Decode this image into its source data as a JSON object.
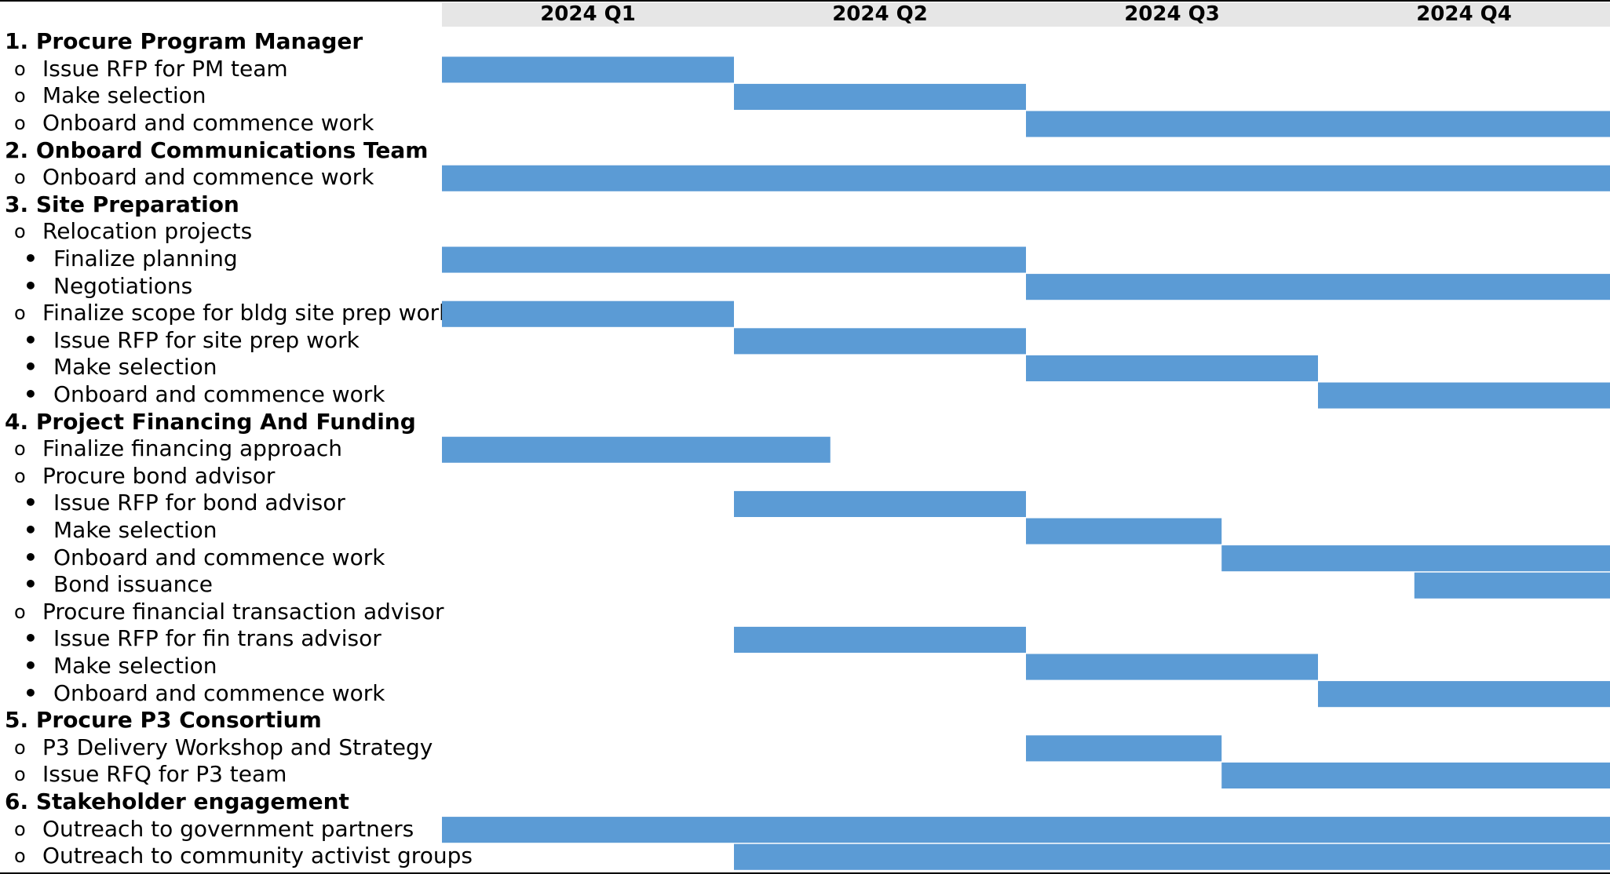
{
  "chart_data": {
    "type": "bar",
    "title": "",
    "xlabel": "",
    "ylabel": "",
    "quarters": [
      "2024 Q1",
      "2024 Q2",
      "2024 Q3",
      "2024 Q4"
    ],
    "x_range_quarters": [
      0,
      4
    ],
    "grid": false,
    "legend": "none",
    "colors": {
      "bar": "#5b9bd5",
      "header_band": "#e6e6e6"
    },
    "rows": [
      {
        "level": "section",
        "marker": "",
        "label": "1. Procure Program Manager",
        "start": null,
        "end": null
      },
      {
        "level": "sub",
        "marker": "o",
        "label": "Issue RFP for PM team",
        "start": 0,
        "end": 1
      },
      {
        "level": "sub",
        "marker": "o",
        "label": "Make selection",
        "start": 1,
        "end": 2
      },
      {
        "level": "sub",
        "marker": "o",
        "label": "Onboard and commence work",
        "start": 2,
        "end": 4
      },
      {
        "level": "section",
        "marker": "",
        "label": "2. Onboard Communications Team",
        "start": null,
        "end": null
      },
      {
        "level": "sub",
        "marker": "o",
        "label": "Onboard and commence work",
        "start": 0,
        "end": 4
      },
      {
        "level": "section",
        "marker": "",
        "label": "3. Site Preparation",
        "start": null,
        "end": null
      },
      {
        "level": "sub",
        "marker": "o",
        "label": "Relocation projects",
        "start": null,
        "end": null
      },
      {
        "level": "subsub",
        "marker": "•",
        "label": "Finalize planning",
        "start": 0,
        "end": 2
      },
      {
        "level": "subsub",
        "marker": "•",
        "label": "Negotiations",
        "start": 2,
        "end": 4
      },
      {
        "level": "sub",
        "marker": "o",
        "label": "Finalize scope for bldg site prep work",
        "start": 0,
        "end": 1
      },
      {
        "level": "subsub",
        "marker": "•",
        "label": "Issue RFP for site prep work",
        "start": 1,
        "end": 2
      },
      {
        "level": "subsub",
        "marker": "•",
        "label": "Make selection",
        "start": 2,
        "end": 3
      },
      {
        "level": "subsub",
        "marker": "•",
        "label": "Onboard and commence work",
        "start": 3,
        "end": 4
      },
      {
        "level": "section",
        "marker": "",
        "label": "4. Project Financing And Funding",
        "start": null,
        "end": null
      },
      {
        "level": "sub",
        "marker": "o",
        "label": "Finalize financing approach",
        "start": 0,
        "end": 1.33
      },
      {
        "level": "sub",
        "marker": "o",
        "label": "Procure bond advisor",
        "start": null,
        "end": null
      },
      {
        "level": "subsub",
        "marker": "•",
        "label": "Issue RFP for bond advisor",
        "start": 1,
        "end": 2
      },
      {
        "level": "subsub",
        "marker": "•",
        "label": "Make selection",
        "start": 2,
        "end": 2.67
      },
      {
        "level": "subsub",
        "marker": "•",
        "label": "Onboard and commence work",
        "start": 2.67,
        "end": 4
      },
      {
        "level": "subsub",
        "marker": "•",
        "label": "Bond issuance",
        "start": 3.33,
        "end": 4
      },
      {
        "level": "sub",
        "marker": "o",
        "label": "Procure financial transaction advisor",
        "start": null,
        "end": null
      },
      {
        "level": "subsub",
        "marker": "•",
        "label": "Issue RFP for fin trans advisor",
        "start": 1,
        "end": 2
      },
      {
        "level": "subsub",
        "marker": "•",
        "label": "Make selection",
        "start": 2,
        "end": 3
      },
      {
        "level": "subsub",
        "marker": "•",
        "label": "Onboard and commence work",
        "start": 3,
        "end": 4
      },
      {
        "level": "section",
        "marker": "",
        "label": "5. Procure P3 Consortium",
        "start": null,
        "end": null
      },
      {
        "level": "sub",
        "marker": "o",
        "label": "P3 Delivery Workshop and Strategy",
        "start": 2,
        "end": 2.67
      },
      {
        "level": "sub",
        "marker": "o",
        "label": "Issue RFQ for P3 team",
        "start": 2.67,
        "end": 4
      },
      {
        "level": "section",
        "marker": "",
        "label": "6. Stakeholder engagement",
        "start": null,
        "end": null
      },
      {
        "level": "sub",
        "marker": "o",
        "label": "Outreach to government partners",
        "start": 0,
        "end": 4
      },
      {
        "level": "sub",
        "marker": "o",
        "label": "Outreach to community activist groups",
        "start": 1,
        "end": 4
      }
    ]
  }
}
